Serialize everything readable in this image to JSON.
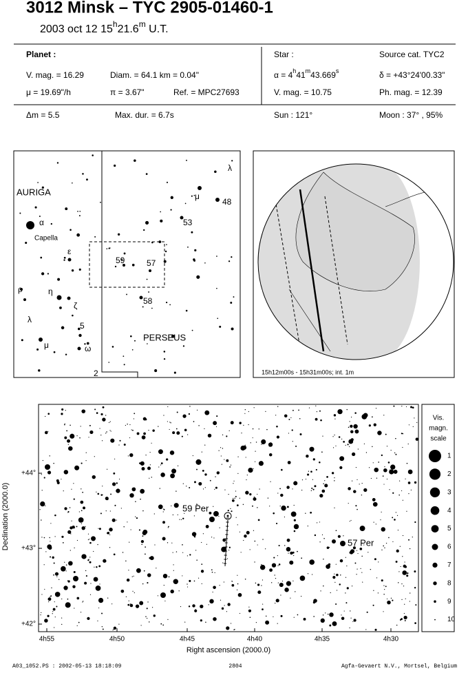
{
  "header": {
    "title": "3012 Minsk  –  TYC 2905-01460-1",
    "date_time": [
      "2003 oct 12  15",
      "h",
      "21.6",
      "m",
      " U.T."
    ]
  },
  "planet": {
    "heading": "Planet :",
    "vmag": "V. mag. = 16.29",
    "diam": "Diam. = 64.1 km = 0.04\"",
    "mu": "μ = 19.69\"/h",
    "parallax": "π = 3.67\"",
    "ref": "Ref. = MPC27693"
  },
  "star": {
    "heading": "Star :",
    "source": "Source cat.  TYC2",
    "alpha": [
      "α = 4",
      "h",
      "41",
      "m",
      "43.669",
      "s"
    ],
    "delta": "δ = +43°24'00.33\"",
    "vmag": "V. mag. = 10.75",
    "phmag": "Ph. mag. = 12.39"
  },
  "event": {
    "dmag": "Δm = 5.5",
    "maxdur": "Max. dur. = 6.7s",
    "sun": "Sun : 121°",
    "moon": "Moon :  37° , 95%"
  },
  "finder": {
    "labels": [
      "AURIGA",
      "α",
      "Capella",
      "ε",
      "59",
      "57",
      "ρ",
      "η",
      "ζ",
      "5",
      "λ",
      "μ",
      "ω",
      "2",
      "PERSEUS",
      "λ",
      "μ",
      "48",
      "53",
      "58"
    ]
  },
  "globe": {
    "caption": "15h12m00s - 15h31m00s; int.  1m"
  },
  "detail": {
    "yticks": [
      "+44°",
      "+43°",
      "+42°"
    ],
    "xticks": [
      "4h55",
      "4h50",
      "4h45",
      "4h40",
      "4h35",
      "4h30"
    ],
    "xlabel": "Right ascension (2000.0)",
    "ylabel": "Declination (2000.0)",
    "star_labels": [
      "59 Per",
      "57 Per"
    ],
    "legend_title": [
      "Vis.",
      "magn.",
      "scale"
    ],
    "magnitudes": [
      1,
      2,
      3,
      4,
      5,
      6,
      7,
      8,
      9,
      10
    ]
  },
  "footer": {
    "file": "A03_1052.PS : 2002-05-13 18:18:09",
    "page": "2804",
    "credit": "Agfa-Gevaert N.V., Mortsel, Belgium"
  }
}
